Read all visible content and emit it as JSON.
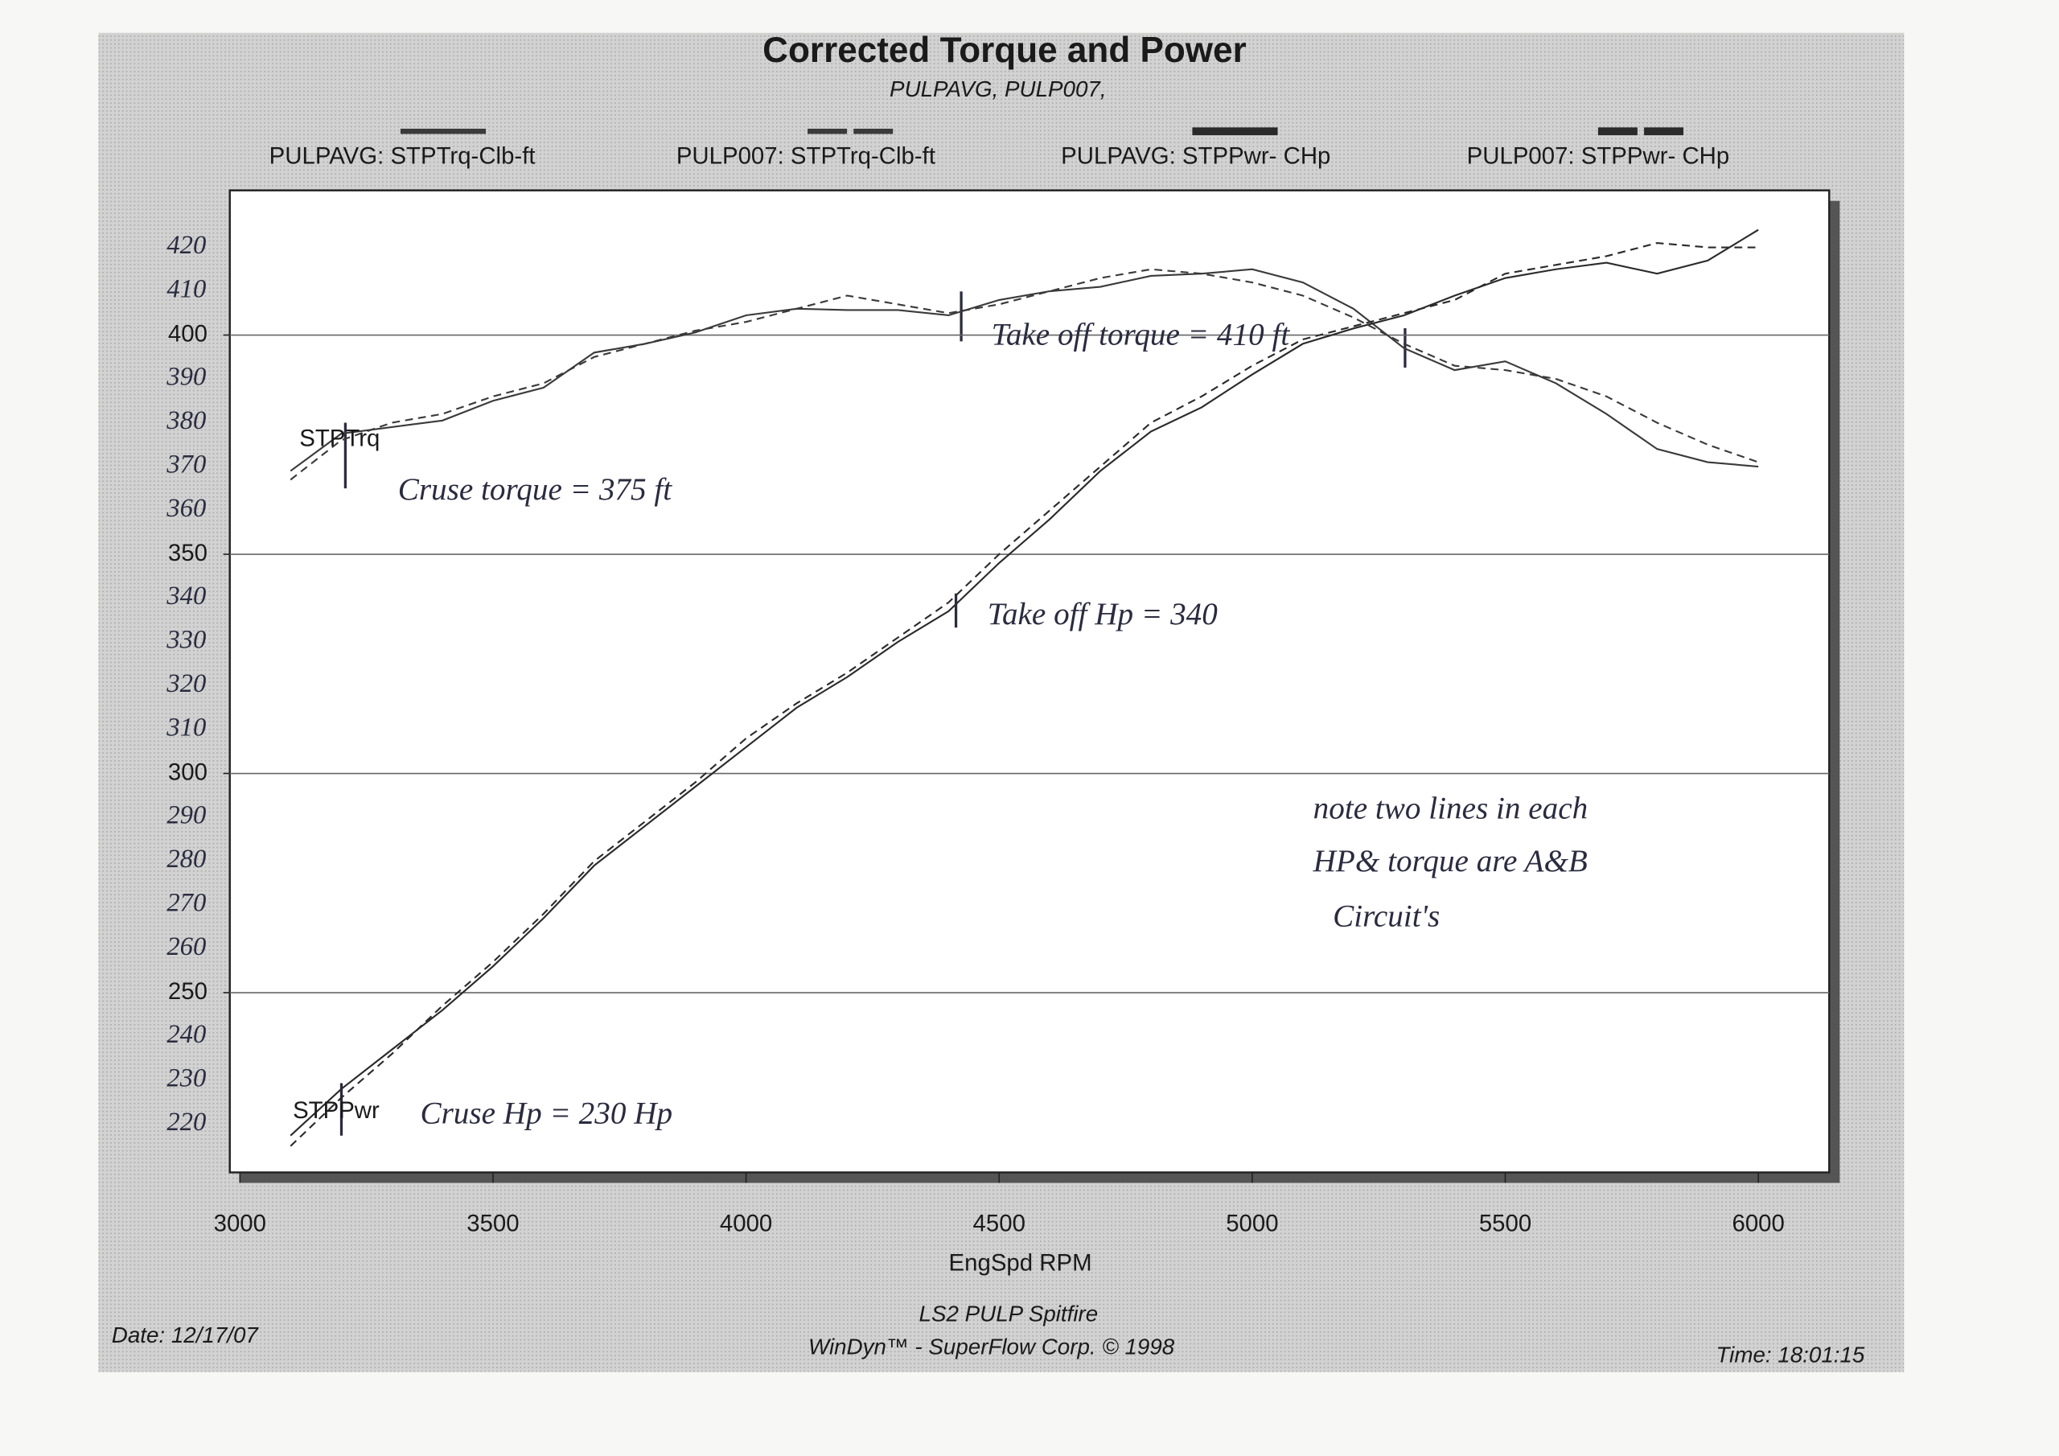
{
  "chart_data": {
    "type": "line",
    "title": "Corrected Torque and Power",
    "subtitle": "PULPAVG, PULP007,",
    "x_label": "EngSpd RPM",
    "x": [
      3100,
      3200,
      3300,
      3400,
      3500,
      3600,
      3700,
      3800,
      3900,
      4000,
      4100,
      4200,
      4300,
      4400,
      4500,
      4600,
      4700,
      4800,
      4900,
      5000,
      5100,
      5200,
      5300,
      5400,
      5500,
      5600,
      5700,
      5800,
      5900,
      6000
    ],
    "series": [
      {
        "name": "PULPAVG: STPTrq-Clb-ft",
        "color": "#3a3a3a",
        "style": "solid",
        "values": [
          369,
          377.5,
          379,
          380.5,
          385,
          388,
          396,
          398,
          400.6,
          404.5,
          406,
          405.7,
          405.7,
          404.5,
          408,
          410,
          411,
          413.5,
          414,
          415,
          412,
          406,
          397,
          392,
          394,
          389,
          382,
          374,
          371,
          370
        ]
      },
      {
        "name": "PULP007: STPTrq-Clb-ft",
        "color": "#3a3a3a",
        "style": "dashed",
        "values": [
          367,
          376,
          380,
          382,
          386,
          389,
          395,
          398,
          401,
          403,
          406,
          409,
          407,
          405,
          407,
          410,
          413,
          415,
          414,
          412,
          409,
          404,
          398,
          393,
          392,
          390,
          386,
          380,
          375,
          371
        ]
      },
      {
        "name": "PULPAVG: STPPwr- CHp",
        "color": "#2a2a2a",
        "style": "solid",
        "values": [
          217.4,
          228,
          237,
          246,
          256,
          267,
          279,
          288,
          297,
          306,
          315,
          322,
          330,
          337,
          348,
          358,
          369,
          378,
          383.5,
          391,
          398,
          401.5,
          404.5,
          409,
          413,
          415,
          416.5,
          414,
          417,
          424
        ]
      },
      {
        "name": "PULP007: STPPwr- CHp",
        "color": "#2a2a2a",
        "style": "dashed",
        "values": [
          215,
          226,
          236,
          247,
          257,
          268,
          280,
          289,
          298,
          308,
          316,
          323,
          331,
          339,
          350,
          360,
          370,
          380,
          386,
          393,
          399,
          402,
          405,
          408,
          414,
          416,
          418,
          421,
          420,
          420
        ]
      }
    ],
    "xlim": [
      2980,
      6140
    ],
    "ylim": [
      209,
      433
    ],
    "xticks": [
      3000,
      3500,
      4000,
      4500,
      5000,
      5500,
      6000
    ],
    "yticks": [
      250,
      300,
      350,
      400
    ],
    "grid": true,
    "handwritten_yticks": [
      420,
      410,
      390,
      380,
      370,
      360,
      340,
      330,
      320,
      310,
      290,
      280,
      270,
      260,
      240,
      230,
      220
    ],
    "annotations": [
      "STPTrq",
      "STPPwr",
      "Cruse torque = 375 ft",
      "Take off torque = 410 ft",
      "Take off Hp = 340",
      "Cruse Hp = 230 Hp",
      "note two lines in each",
      "HP& torque are A&B",
      "Circuit's"
    ],
    "footer": {
      "title": "LS2 PULP Spitfire",
      "software": "WinDyn™ - SuperFlow Corp. © 1998",
      "date": "Date: 12/17/07",
      "time": "Time: 18:01:15"
    }
  }
}
